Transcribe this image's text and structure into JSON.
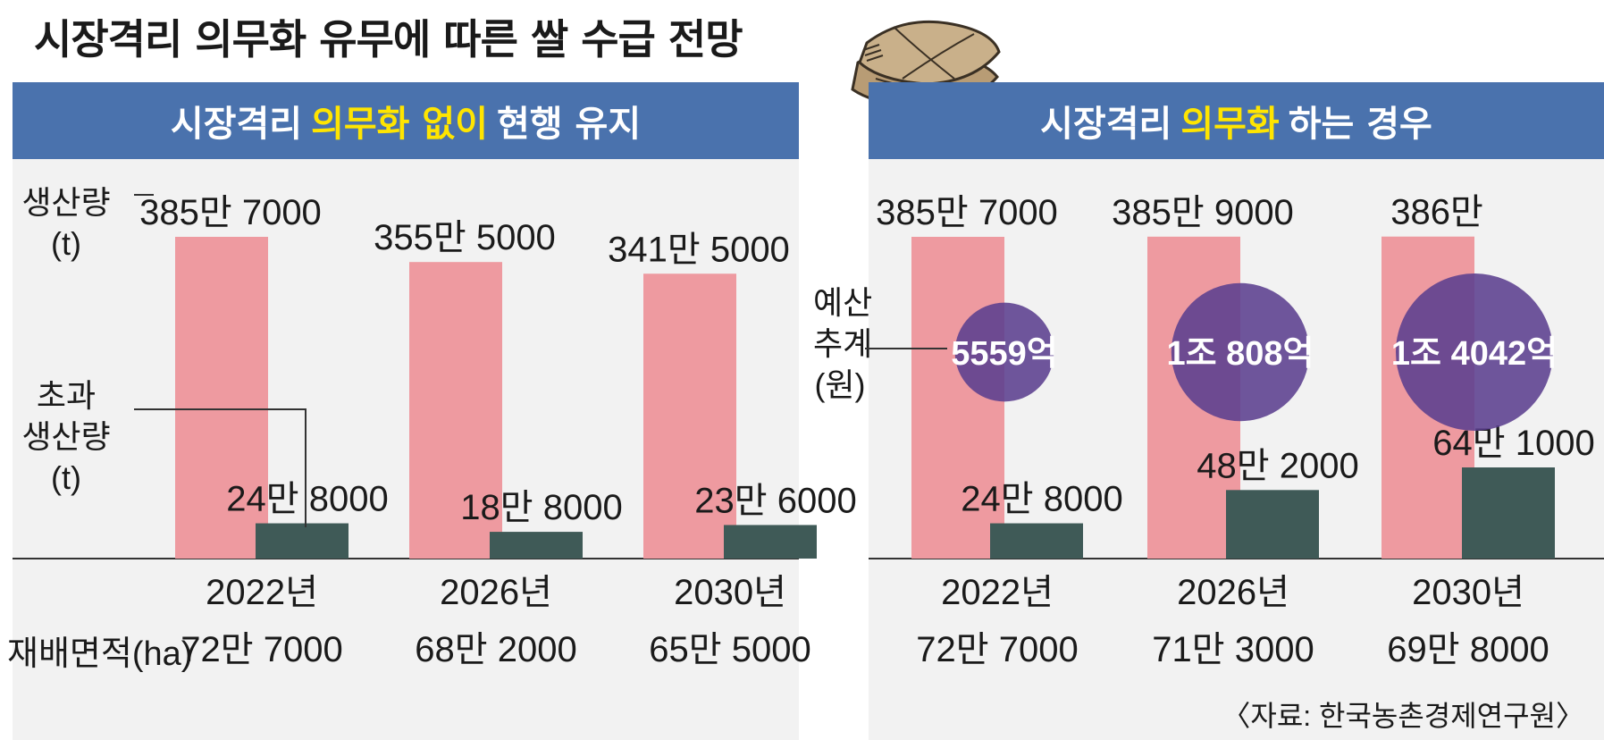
{
  "title": "시장격리 의무화 유무에 따른 쌀 수급 전망",
  "source": "〈자료: 한국농촌경제연구원〉",
  "icon": "rice-sack-icon",
  "colors": {
    "band": "#4a72ad",
    "band_highlight": "#ffe500",
    "production_bar": "#ee9aa0",
    "excess_bar": "#3f5a57",
    "budget_circle": "#5b3f8e"
  },
  "left_panel": {
    "header": {
      "pre": "시장격리",
      "highlight": "의무화 없이",
      "post": "현행 유지"
    }
  },
  "right_panel": {
    "header": {
      "pre": "시장격리",
      "highlight": "의무화",
      "post": "하는 경우"
    }
  },
  "labels": {
    "production": [
      "생산량",
      "(t)"
    ],
    "excess": [
      "초과",
      "생산량",
      "(t)"
    ],
    "budget": [
      "예산",
      "추계",
      "(원)"
    ],
    "area": "재배면적(ha)"
  },
  "chart_data": [
    {
      "type": "bar",
      "panel": "시장격리 의무화 없이 현행 유지",
      "categories": [
        "2022년",
        "2026년",
        "2030년"
      ],
      "series": [
        {
          "name": "생산량",
          "unit": "t",
          "values": [
            3857000,
            3555000,
            3415000
          ],
          "labels": [
            "385만 7000",
            "355만 5000",
            "341만 5000"
          ]
        },
        {
          "name": "초과 생산량",
          "unit": "t",
          "values": [
            248000,
            188000,
            236000
          ],
          "labels": [
            "24만 8000",
            "18만 8000",
            "23만 6000"
          ]
        }
      ],
      "area": {
        "name": "재배면적",
        "unit": "ha",
        "values": [
          727000,
          682000,
          655000
        ],
        "labels": [
          "72만 7000",
          "68만 2000",
          "65만 5000"
        ]
      }
    },
    {
      "type": "bar",
      "panel": "시장격리 의무화 하는 경우",
      "categories": [
        "2022년",
        "2026년",
        "2030년"
      ],
      "series": [
        {
          "name": "생산량",
          "unit": "t",
          "values": [
            3857000,
            3859000,
            3860000
          ],
          "labels": [
            "385만 7000",
            "385만 9000",
            "386만"
          ]
        },
        {
          "name": "초과 생산량",
          "unit": "t",
          "values": [
            248000,
            482000,
            641000
          ],
          "labels": [
            "24만 8000",
            "48만 2000",
            "64만 1000"
          ]
        }
      ],
      "budget": {
        "name": "예산 추계",
        "unit": "원",
        "values": [
          555900000000,
          1080800000000,
          1404200000000
        ],
        "labels": [
          "5559억",
          "1조 808억",
          "1조 4042억"
        ]
      },
      "area": {
        "name": "재배면적",
        "unit": "ha",
        "values": [
          727000,
          713000,
          698000
        ],
        "labels": [
          "72만 7000",
          "71만 3000",
          "69만 8000"
        ]
      }
    }
  ]
}
